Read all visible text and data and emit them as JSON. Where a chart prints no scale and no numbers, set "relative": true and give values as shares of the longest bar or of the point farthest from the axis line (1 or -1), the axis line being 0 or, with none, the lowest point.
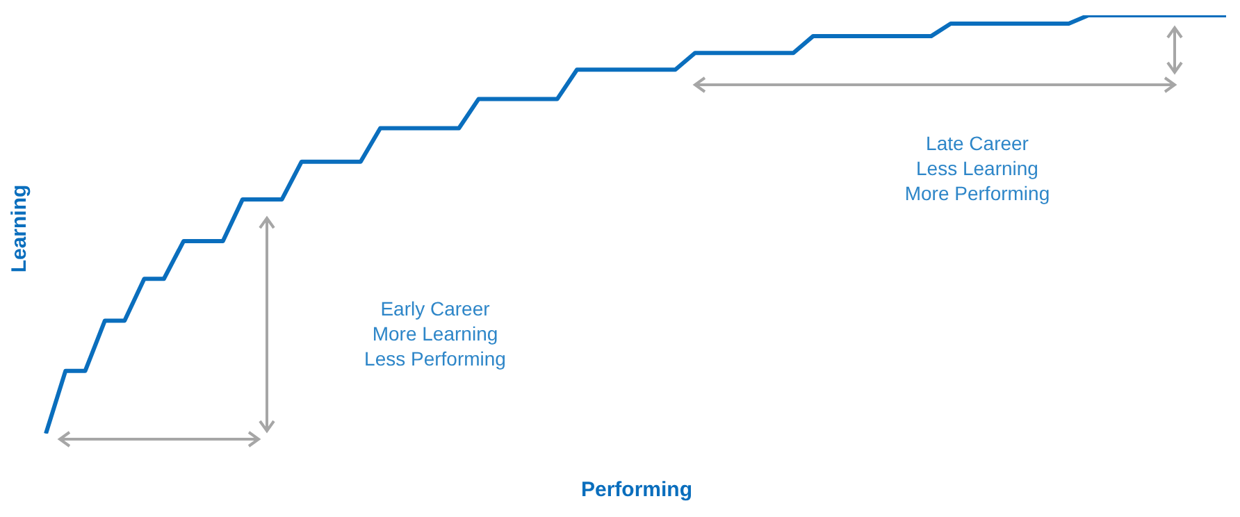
{
  "chart_data": {
    "type": "line",
    "relative": true,
    "xlabel": "Performing",
    "ylabel": "Learning",
    "color": "#0a6ebd",
    "marker": "none",
    "line_style": "solid",
    "categories": [
      null,
      null,
      null,
      null,
      null,
      null,
      null,
      null,
      null,
      null,
      null,
      null,
      null,
      null,
      null,
      null,
      null,
      null,
      null,
      null,
      null,
      null,
      null,
      null,
      null,
      null,
      null,
      null,
      null,
      null,
      null,
      null,
      null,
      null,
      null,
      null,
      null,
      null,
      null,
      null,
      null,
      null,
      null,
      null,
      null,
      null,
      null,
      null,
      null,
      null,
      null,
      null,
      null,
      null,
      null,
      null,
      null,
      null,
      null,
      null,
      null
    ],
    "values": [
      0,
      0.15,
      0.15,
      0.27,
      0.27,
      0.37,
      0.37,
      0.46,
      0.46,
      0.46,
      0.56,
      0.56,
      0.56,
      0.65,
      0.65,
      0.65,
      0.65,
      0.73,
      0.73,
      0.73,
      0.73,
      0.73,
      0.8,
      0.8,
      0.8,
      0.8,
      0.8,
      0.87,
      0.87,
      0.87,
      0.87,
      0.87,
      0.87,
      0.91,
      0.91,
      0.91,
      0.91,
      0.91,
      0.91,
      0.95,
      0.95,
      0.95,
      0.95,
      0.95,
      0.95,
      0.95,
      0.98,
      0.98,
      0.98,
      0.98,
      0.98,
      0.98,
      0.98,
      1,
      1,
      1,
      1,
      1,
      1,
      1,
      1
    ],
    "annotations": [
      "Early Career\nMore Learning\nLess Performing",
      "Late Career\nLess Learning\nMore Performing"
    ]
  }
}
